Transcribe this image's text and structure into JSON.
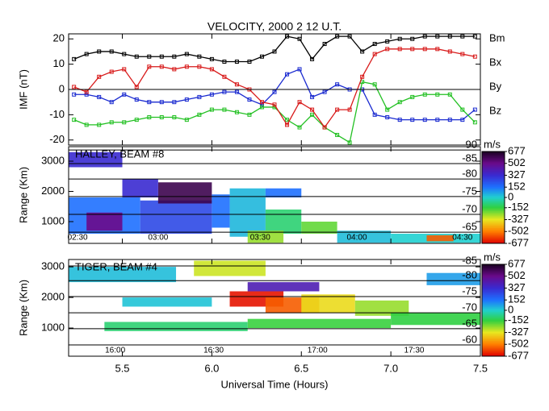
{
  "chart_data": [
    {
      "type": "line",
      "title": "VELOCITY, 2000 2 12 U.T.",
      "ylabel": "IMF (nT)",
      "x": [
        5.23,
        5.3,
        5.37,
        5.44,
        5.51,
        5.58,
        5.65,
        5.72,
        5.79,
        5.86,
        5.93,
        6.0,
        6.07,
        6.14,
        6.21,
        6.28,
        6.35,
        6.42,
        6.49,
        6.56,
        6.63,
        6.7,
        6.77,
        6.84,
        6.91,
        6.98,
        7.05,
        7.12,
        7.19,
        7.26,
        7.33,
        7.4,
        7.47
      ],
      "xlim": [
        5.2,
        7.5
      ],
      "ylim": [
        -22,
        22
      ],
      "yticks": [
        -20,
        -10,
        0,
        10,
        20
      ],
      "series": [
        {
          "name": "Bm",
          "color": "#000000",
          "values": [
            12,
            14,
            15,
            15,
            14,
            13,
            13,
            13,
            13,
            14,
            13,
            12,
            11,
            11,
            11,
            13,
            15,
            21,
            20,
            12,
            18,
            21,
            21,
            15,
            18,
            19,
            20,
            20,
            21,
            21,
            21,
            21,
            21
          ]
        },
        {
          "name": "Bx",
          "color": "#1a2ad0",
          "values": [
            -2,
            -2,
            -3,
            -5,
            -2,
            -4,
            -5,
            -5,
            -5,
            -4,
            -3,
            -2,
            -1,
            -1,
            -4,
            -6,
            -1,
            6,
            8,
            -3,
            -1,
            2,
            0,
            0,
            -10,
            -11,
            -12,
            -12,
            -12,
            -12,
            -12,
            -12,
            -8
          ]
        },
        {
          "name": "By",
          "color": "#22c022",
          "values": [
            -12,
            -14,
            -14,
            -13,
            -13,
            -12,
            -11,
            -11,
            -11,
            -12,
            -10,
            -8,
            -8,
            -9,
            -10,
            -7,
            -7,
            -12,
            -15,
            -10,
            -15,
            -18,
            -21,
            3,
            2,
            -8,
            -5,
            -3,
            -2,
            -2,
            -2,
            -8,
            -13
          ]
        },
        {
          "name": "Bz",
          "color": "#d81a1a",
          "values": [
            1,
            -1,
            5,
            7,
            8,
            1,
            9,
            9,
            8,
            9,
            9,
            8,
            5,
            2,
            0,
            -5,
            -6,
            -14,
            -5,
            -8,
            -15,
            -8,
            -8,
            5,
            14,
            16,
            16,
            16,
            16,
            16,
            15,
            14,
            13
          ]
        }
      ]
    },
    {
      "type": "heatmap",
      "title": "HALLEY, BEAM #8",
      "ylabel": "Range (Km)",
      "colorbar_label": "m/s",
      "xlim": [
        5.2,
        7.5
      ],
      "ylim": [
        280,
        3480
      ],
      "yticks": [
        1000,
        2000,
        3000
      ],
      "x_start": [
        5.2,
        5.3,
        5.6,
        5.7,
        5.5,
        6.0,
        6.1,
        6.3,
        6.2,
        6.5,
        6.7,
        7.0,
        7.2,
        5.2,
        6.3
      ],
      "x_end": [
        5.6,
        5.5,
        6.0,
        6.0,
        5.7,
        6.1,
        6.3,
        6.5,
        6.4,
        6.7,
        7.0,
        7.5,
        7.35,
        5.5,
        6.5
      ],
      "range_start": [
        600,
        700,
        600,
        1600,
        1800,
        800,
        500,
        600,
        300,
        600,
        300,
        300,
        350,
        2800,
        1800
      ],
      "range_end": [
        1800,
        1300,
        1700,
        2300,
        2400,
        1900,
        2100,
        1400,
        700,
        1000,
        700,
        600,
        550,
        3300,
        2100
      ],
      "values": [
        152,
        502,
        250,
        600,
        327,
        152,
        40,
        -100,
        -250,
        -200,
        30,
        0,
        -550,
        327,
        152
      ],
      "latitudes": [
        -90,
        -85,
        -80,
        -75,
        -70,
        -65
      ],
      "latitude_ranges": [
        3370,
        2920,
        2410,
        1830,
        1240,
        650
      ],
      "local_times": [
        "02:30",
        "03:00",
        "03:30",
        "04:00",
        "04:30"
      ],
      "local_time_x": [
        5.25,
        5.7,
        6.27,
        6.81,
        7.4
      ],
      "colorbar": {
        "ticks": [
          677,
          502,
          327,
          152,
          0,
          -152,
          -327,
          -502,
          -677
        ],
        "colors": [
          "#1a0020",
          "#6a0a8a",
          "#3a2ad0",
          "#1e70ff",
          "#20d0d0",
          "#30d040",
          "#e8e820",
          "#ff8000",
          "#e00000"
        ]
      }
    },
    {
      "type": "heatmap",
      "title": "TIGER, BEAM #4",
      "ylabel": "Range (Km)",
      "xlabel": "Universal Time (Hours)",
      "colorbar_label": "m/s",
      "xlim": [
        5.2,
        7.5
      ],
      "ylim": [
        80,
        3240
      ],
      "yticks": [
        1000,
        2000,
        3000
      ],
      "xticks": [
        5.5,
        {
          "value": 6,
          "label": "6.0"
        },
        6.5,
        {
          "value": 7,
          "label": "7.0"
        },
        7.5
      ],
      "x_start": [
        6.1,
        6.3,
        6.5,
        6.8,
        7.0,
        5.4,
        6.2,
        5.2,
        5.9,
        6.2,
        5.5,
        7.2
      ],
      "x_end": [
        6.4,
        6.6,
        6.8,
        7.1,
        7.5,
        6.2,
        7.0,
        5.8,
        6.3,
        6.6,
        6.0,
        7.5
      ],
      "range_start": [
        1700,
        1500,
        1500,
        1400,
        1100,
        900,
        1000,
        2500,
        2700,
        2200,
        1700,
        2400
      ],
      "range_end": [
        2200,
        2000,
        2100,
        1900,
        1500,
        1200,
        1300,
        3000,
        3200,
        2500,
        2000,
        2800
      ],
      "values": [
        -650,
        -550,
        -350,
        -250,
        -150,
        -100,
        -160,
        30,
        -300,
        400,
        20,
        80
      ],
      "latitudes": [
        -85,
        -80,
        -75,
        -70,
        -65,
        -60
      ],
      "latitude_ranges": [
        3030,
        2550,
        2030,
        1500,
        980,
        450
      ],
      "local_times": [
        "16:00",
        "16:30",
        "17:00",
        "17:30"
      ],
      "local_time_x": [
        5.46,
        6.01,
        6.59,
        7.13
      ],
      "colorbar": {
        "ticks": [
          677,
          502,
          327,
          152,
          0,
          -152,
          -327,
          -502,
          -677
        ],
        "colors": [
          "#1a0020",
          "#6a0a8a",
          "#3a2ad0",
          "#1e70ff",
          "#20d0d0",
          "#30d040",
          "#e8e820",
          "#ff8000",
          "#e00000"
        ]
      }
    }
  ]
}
